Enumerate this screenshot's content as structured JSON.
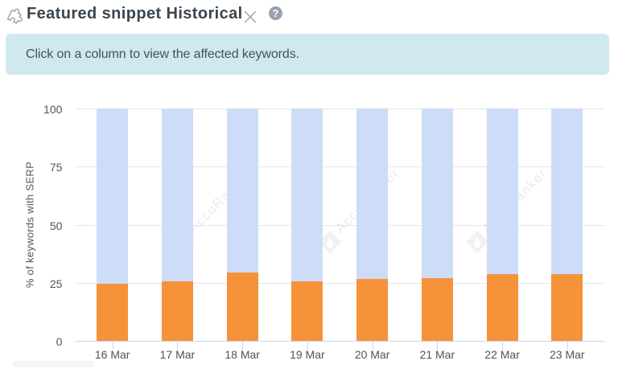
{
  "widget": {
    "title": "Featured snippet Historical",
    "icons": {
      "puzzle": "puzzle-piece-icon",
      "close": "close-icon",
      "help": "question-mark-icon"
    },
    "help_glyph": "?"
  },
  "banner": {
    "text": "Click on a column to view the affected keywords."
  },
  "chart_data": {
    "type": "bar",
    "stacked": true,
    "categories": [
      "16 Mar",
      "17 Mar",
      "18 Mar",
      "19 Mar",
      "20 Mar",
      "21 Mar",
      "22 Mar",
      "23 Mar"
    ],
    "series": [
      {
        "name": "bottom-orange",
        "color": "#f6923a",
        "values": [
          24.8,
          25.7,
          29.6,
          25.7,
          26.9,
          27.1,
          28.9,
          28.8
        ]
      },
      {
        "name": "top-blue",
        "color": "#cdddf7",
        "values": [
          75.2,
          74.3,
          70.4,
          74.3,
          73.1,
          72.9,
          71.1,
          71.2
        ]
      }
    ],
    "title": "",
    "xlabel": "",
    "ylabel": "% of keywords with SERP",
    "ylim": [
      0,
      100
    ],
    "yticks": [
      0,
      25,
      50,
      75,
      100
    ],
    "grid": true,
    "legend": "none"
  },
  "watermark": {
    "text": "AccuRanker"
  },
  "colors": {
    "banner_bg": "#cfe9ee",
    "bar_orange": "#f6923a",
    "bar_blue": "#cdddf7",
    "axis_line": "#ccd6eb",
    "gridline": "#e7e7e7",
    "title_text": "#3b454e",
    "banner_text": "#3e5560",
    "axis_text": "#4c565e"
  }
}
